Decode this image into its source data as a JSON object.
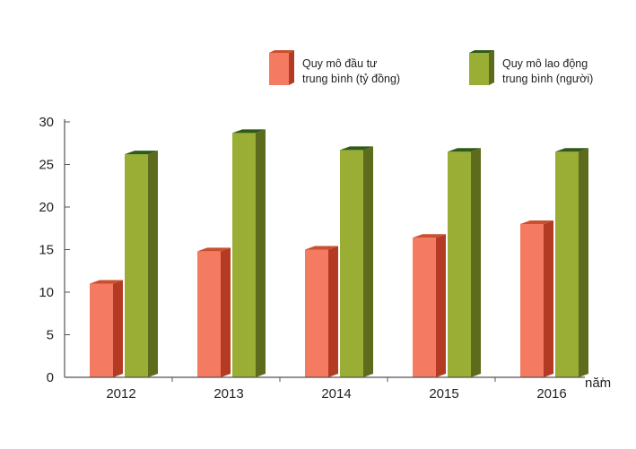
{
  "chart_data": {
    "type": "bar",
    "categories": [
      "2012",
      "2013",
      "2014",
      "2015",
      "2016"
    ],
    "series": [
      {
        "name": "Quy mô đầu tư trung bình (tỷ đồng)",
        "legend_lines": [
          "Quy mô đầu tư",
          "trung bình (tỷ đồng)"
        ],
        "values": [
          11.0,
          14.8,
          15.0,
          16.4,
          18.0
        ],
        "color": "#f47b61",
        "side_color": "#b43a23",
        "top_color": "#c8502f"
      },
      {
        "name": "Quy mô lao động trung bình (người)",
        "legend_lines": [
          "Quy mô lao động",
          "trung bình (người)"
        ],
        "values": [
          26.2,
          28.7,
          26.7,
          26.5,
          26.5
        ],
        "color": "#9aad35",
        "side_color": "#5d6c1c",
        "top_color": "#2f5a18"
      }
    ],
    "yticks": [
      "0",
      "5",
      "10",
      "15",
      "20",
      "25",
      "30"
    ],
    "ylim": [
      0,
      30
    ],
    "xlabel": "năm",
    "ylabel": "",
    "title": "",
    "grid": false,
    "legend_position": "top-right"
  }
}
